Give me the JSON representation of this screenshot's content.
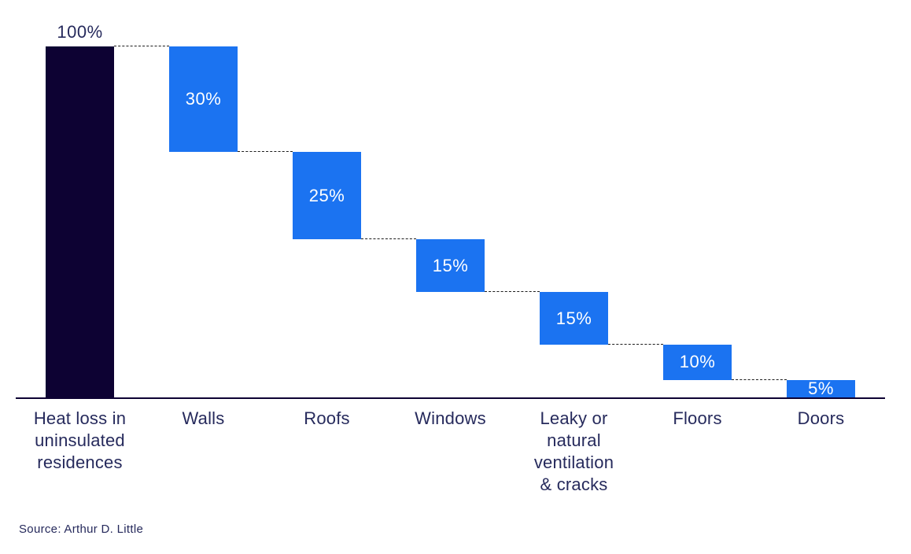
{
  "source_note": "Source: Arthur D. Little",
  "chart_data": {
    "type": "bar",
    "subtype": "waterfall",
    "title": "",
    "xlabel": "",
    "ylabel": "",
    "ylim": [
      0,
      100
    ],
    "grid": false,
    "legend": false,
    "unit": "%",
    "categories": [
      "Heat loss in uninsulated residences",
      "Walls",
      "Roofs",
      "Windows",
      "Leaky or natural ventilation & cracks",
      "Floors",
      "Doors"
    ],
    "category_lines": [
      [
        "Heat loss in",
        "uninsulated",
        "residences"
      ],
      [
        "Walls"
      ],
      [
        "Roofs"
      ],
      [
        "Windows"
      ],
      [
        "Leaky or",
        "natural",
        "ventilation",
        "& cracks"
      ],
      [
        "Floors"
      ],
      [
        "Doors"
      ]
    ],
    "values": [
      100,
      30,
      25,
      15,
      15,
      10,
      5
    ],
    "value_labels": [
      "100%",
      "30%",
      "25%",
      "15%",
      "15%",
      "10%",
      "5%"
    ],
    "roles": [
      "total",
      "step",
      "step",
      "step",
      "step",
      "step",
      "step"
    ],
    "colors": {
      "total_bar": "#0d0233",
      "step_bar": "#1b73f1",
      "value_text_inside": "#ffffff",
      "value_text_total": "#262a5c",
      "category_text": "#262a5c",
      "source_text": "#262a5c",
      "connector": "#1c1c1c",
      "axis": "#0d0233"
    }
  }
}
